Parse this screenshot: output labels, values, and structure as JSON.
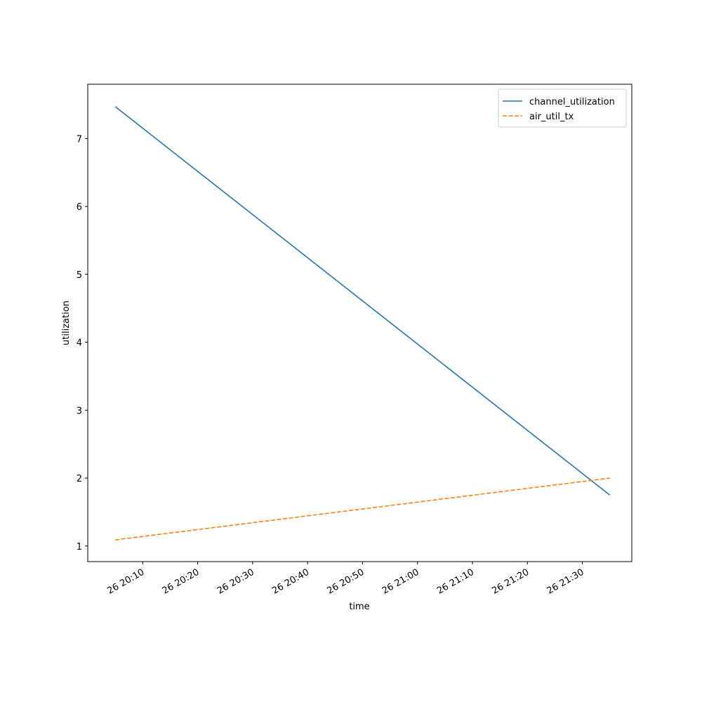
{
  "chart_data": {
    "type": "line",
    "xlabel": "time",
    "ylabel": "utilization",
    "x": [
      "26 20:05",
      "26 21:35"
    ],
    "series": [
      {
        "name": "channel_utilization",
        "color": "#1f77b4",
        "linestyle": "solid",
        "values": [
          7.47,
          1.75
        ]
      },
      {
        "name": "air_util_tx",
        "color": "#ff7f0e",
        "linestyle": "dashed",
        "values": [
          1.09,
          2.0
        ]
      }
    ],
    "xlim": [
      "26 20:00",
      "26 21:39"
    ],
    "xticks": [
      "26 20:10",
      "26 20:20",
      "26 20:30",
      "26 20:40",
      "26 20:50",
      "26 21:00",
      "26 21:10",
      "26 21:20",
      "26 21:30"
    ],
    "ylim": [
      0.77,
      7.8
    ],
    "yticks": [
      1,
      2,
      3,
      4,
      5,
      6,
      7
    ],
    "grid": false,
    "legend": "upper right"
  }
}
